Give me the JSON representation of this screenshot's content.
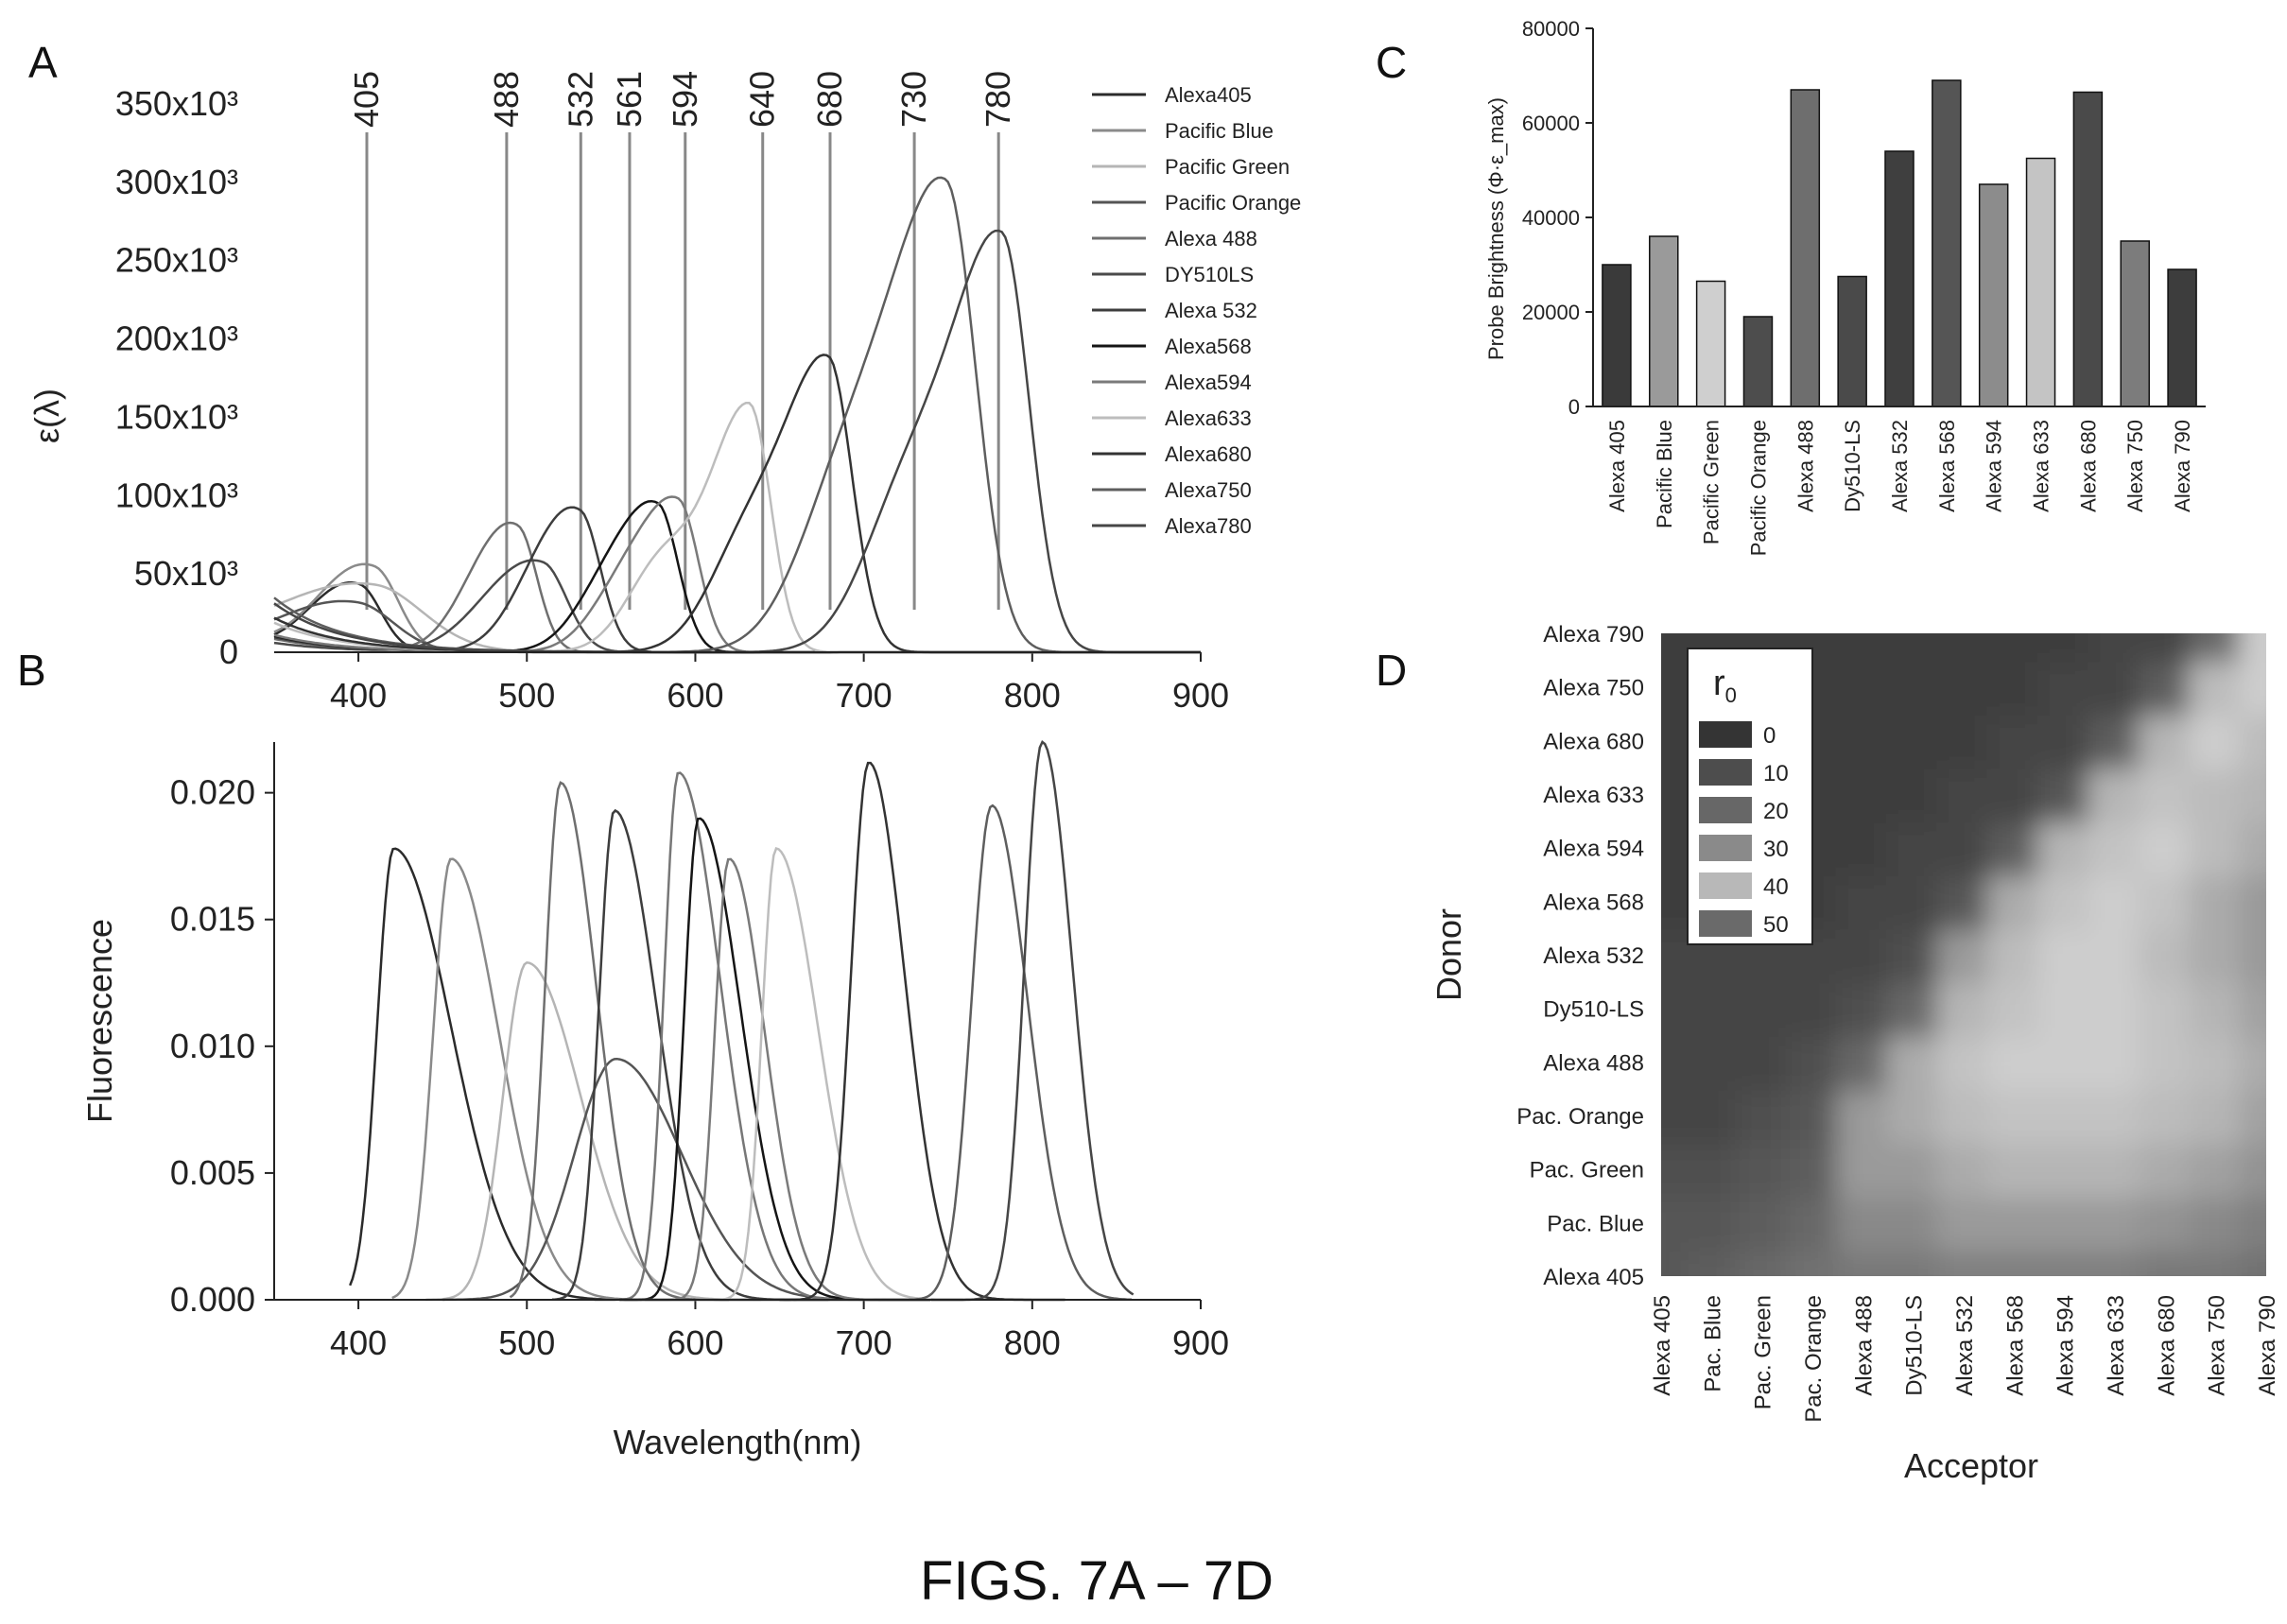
{
  "caption": "FIGS. 7A – 7D",
  "chart_data": [
    {
      "panel": "A",
      "type": "line",
      "ylabel": "ε(λ)",
      "xlim": [
        350,
        900
      ],
      "ylim": [
        0,
        350000
      ],
      "x_ticks": [
        "400",
        "500",
        "600",
        "700",
        "800",
        "900"
      ],
      "y_ticks": [
        "0",
        "50x10³",
        "100x10³",
        "150x10³",
        "200x10³",
        "250x10³",
        "300x10³",
        "350x10³"
      ],
      "laser_lines": [
        "405",
        "488",
        "532",
        "561",
        "594",
        "640",
        "680",
        "730",
        "780"
      ],
      "legend_placement": "right",
      "series": [
        {
          "name": "Alexa405",
          "peak_x": 401,
          "peak_y": 35000,
          "width": 18,
          "shoulder": 380,
          "color": "#2b2b2b"
        },
        {
          "name": "Pacific Blue",
          "peak_x": 410,
          "peak_y": 45000,
          "width": 20,
          "shoulder": 385,
          "color": "#8a8a8a"
        },
        {
          "name": "Pacific Green",
          "peak_x": 410,
          "peak_y": 33000,
          "width": 40,
          "shoulder": 380,
          "color": "#b5b5b5"
        },
        {
          "name": "Pacific Orange",
          "peak_x": 400,
          "peak_y": 25000,
          "width": 30,
          "shoulder": 370,
          "color": "#555555"
        },
        {
          "name": "Alexa 488",
          "peak_x": 495,
          "peak_y": 71000,
          "width": 16,
          "shoulder": 470,
          "color": "#6f6f6f"
        },
        {
          "name": "DY510LS",
          "peak_x": 510,
          "peak_y": 50000,
          "width": 20,
          "shoulder": 480,
          "color": "#4a4a4a"
        },
        {
          "name": "Alexa 532",
          "peak_x": 532,
          "peak_y": 80000,
          "width": 17,
          "shoulder": 505,
          "color": "#3d3d3d"
        },
        {
          "name": "Alexa568",
          "peak_x": 578,
          "peak_y": 88000,
          "width": 17,
          "shoulder": 545,
          "color": "#151515"
        },
        {
          "name": "Alexa594",
          "peak_x": 590,
          "peak_y": 92000,
          "width": 17,
          "shoulder": 555,
          "color": "#7a7a7a"
        },
        {
          "name": "Alexa633",
          "peak_x": 632,
          "peak_y": 157000,
          "width": 18,
          "shoulder": 580,
          "color": "#bdbdbd"
        },
        {
          "name": "Alexa680",
          "peak_x": 679,
          "peak_y": 183000,
          "width": 20,
          "shoulder": 630,
          "color": "#333333"
        },
        {
          "name": "Alexa750",
          "peak_x": 749,
          "peak_y": 290000,
          "width": 25,
          "shoulder": 690,
          "color": "#5e5e5e"
        },
        {
          "name": "Alexa780",
          "peak_x": 782,
          "peak_y": 260000,
          "width": 23,
          "shoulder": 725,
          "color": "#464646"
        }
      ]
    },
    {
      "panel": "B",
      "type": "line",
      "xlabel": "Wavelength(nm)",
      "ylabel": "Fluorescence",
      "xlim": [
        350,
        900
      ],
      "ylim": [
        0,
        0.022
      ],
      "x_ticks": [
        "400",
        "500",
        "600",
        "700",
        "800",
        "900"
      ],
      "y_ticks": [
        "0.000",
        "0.005",
        "0.010",
        "0.015",
        "0.020"
      ],
      "series": [
        {
          "peak_x": 421,
          "peak_y": 0.0178,
          "rise": 14,
          "decay": 48,
          "start": 395,
          "end": 620,
          "color": "#2b2b2b"
        },
        {
          "peak_x": 455,
          "peak_y": 0.0174,
          "rise": 15,
          "decay": 40,
          "start": 420,
          "end": 640,
          "color": "#8a8a8a"
        },
        {
          "peak_x": 500,
          "peak_y": 0.0133,
          "rise": 20,
          "decay": 45,
          "start": 440,
          "end": 680,
          "color": "#b5b5b5"
        },
        {
          "peak_x": 553,
          "peak_y": 0.0095,
          "rise": 35,
          "decay": 55,
          "start": 450,
          "end": 740,
          "color": "#555555"
        },
        {
          "peak_x": 520,
          "peak_y": 0.0204,
          "rise": 13,
          "decay": 30,
          "start": 490,
          "end": 680,
          "color": "#6f6f6f"
        },
        {
          "peak_x": 552,
          "peak_y": 0.0193,
          "rise": 13,
          "decay": 35,
          "start": 515,
          "end": 700,
          "color": "#3d3d3d"
        },
        {
          "peak_x": 590,
          "peak_y": 0.0208,
          "rise": 12,
          "decay": 35,
          "start": 540,
          "end": 740,
          "color": "#777777"
        },
        {
          "peak_x": 602,
          "peak_y": 0.019,
          "rise": 12,
          "decay": 35,
          "start": 555,
          "end": 740,
          "color": "#151515"
        },
        {
          "peak_x": 620,
          "peak_y": 0.0174,
          "rise": 12,
          "decay": 30,
          "start": 570,
          "end": 760,
          "color": "#7a7a7a"
        },
        {
          "peak_x": 648,
          "peak_y": 0.0178,
          "rise": 12,
          "decay": 35,
          "start": 600,
          "end": 800,
          "color": "#bdbdbd"
        },
        {
          "peak_x": 703,
          "peak_y": 0.0212,
          "rise": 15,
          "decay": 30,
          "start": 650,
          "end": 820,
          "color": "#333333"
        },
        {
          "peak_x": 776,
          "peak_y": 0.0195,
          "rise": 17,
          "decay": 30,
          "start": 700,
          "end": 860,
          "color": "#5e5e5e"
        },
        {
          "peak_x": 806,
          "peak_y": 0.022,
          "rise": 15,
          "decay": 25,
          "start": 740,
          "end": 860,
          "color": "#464646"
        }
      ]
    },
    {
      "panel": "C",
      "type": "bar",
      "ylabel": "Probe Brightness (Φ·ε_max)",
      "ylim": [
        0,
        80000
      ],
      "y_ticks": [
        "0",
        "20000",
        "40000",
        "60000",
        "80000"
      ],
      "categories": [
        "Alexa 405",
        "Pacific Blue",
        "Pacific Green",
        "Pacific Orange",
        "Alexa 488",
        "Dy510-LS",
        "Alexa 532",
        "Alexa 568",
        "Alexa 594",
        "Alexa 633",
        "Alexa 680",
        "Alexa 750",
        "Alexa 790"
      ],
      "values": [
        30000,
        36000,
        26500,
        19000,
        67000,
        27500,
        54000,
        69000,
        47000,
        52500,
        66500,
        35000,
        29000
      ],
      "colors": [
        "#3a3a3a",
        "#9a9a9a",
        "#cfcfcf",
        "#4d4d4d",
        "#6e6e6e",
        "#4a4a4a",
        "#3f3f3f",
        "#555555",
        "#8c8c8c",
        "#c4c4c4",
        "#4a4a4a",
        "#7c7c7c",
        "#3d3d3d"
      ]
    },
    {
      "panel": "D",
      "type": "heatmap",
      "xlabel": "Acceptor",
      "ylabel": "Donor",
      "legend_title": "r",
      "legend_subscript": "0",
      "legend_items": [
        {
          "label": "0",
          "color": "#343434"
        },
        {
          "label": "10",
          "color": "#4d4d4d"
        },
        {
          "label": "20",
          "color": "#676767"
        },
        {
          "label": "30",
          "color": "#8a8a8a"
        },
        {
          "label": "40",
          "color": "#b8b8b8"
        },
        {
          "label": "50",
          "color": "#6a6a6a"
        }
      ],
      "x_categories": [
        "Alexa 405",
        "Pac. Blue",
        "Pac. Green",
        "Pac. Orange",
        "Alexa 488",
        "Dy510-LS",
        "Alexa 532",
        "Alexa 568",
        "Alexa 594",
        "Alexa 633",
        "Alexa 680",
        "Alexa 750",
        "Alexa 790"
      ],
      "y_categories": [
        "Alexa 405",
        "Pac. Blue",
        "Pac. Green",
        "Pac. Orange",
        "Alexa 488",
        "Dy510-LS",
        "Alexa 532",
        "Alexa 568",
        "Alexa 594",
        "Alexa 633",
        "Alexa 680",
        "Alexa 750",
        "Alexa 790"
      ],
      "values": [
        [
          10,
          12,
          15,
          18,
          20,
          20,
          22,
          22,
          22,
          22,
          20,
          20,
          18
        ],
        [
          10,
          10,
          12,
          15,
          25,
          25,
          30,
          30,
          30,
          30,
          28,
          25,
          22
        ],
        [
          8,
          8,
          10,
          12,
          30,
          30,
          35,
          38,
          38,
          38,
          35,
          32,
          28
        ],
        [
          5,
          5,
          8,
          10,
          30,
          35,
          40,
          42,
          42,
          42,
          40,
          38,
          32
        ],
        [
          5,
          5,
          5,
          8,
          15,
          35,
          42,
          45,
          45,
          45,
          42,
          40,
          35
        ],
        [
          5,
          5,
          5,
          5,
          8,
          15,
          38,
          42,
          45,
          45,
          42,
          38,
          32
        ],
        [
          5,
          5,
          5,
          5,
          5,
          8,
          30,
          40,
          45,
          45,
          40,
          35,
          30
        ],
        [
          3,
          3,
          3,
          3,
          5,
          5,
          10,
          35,
          42,
          45,
          42,
          35,
          30
        ],
        [
          3,
          3,
          3,
          3,
          3,
          5,
          5,
          12,
          38,
          42,
          45,
          40,
          35
        ],
        [
          3,
          3,
          3,
          3,
          3,
          3,
          5,
          5,
          10,
          38,
          42,
          40,
          38
        ],
        [
          3,
          3,
          3,
          3,
          3,
          3,
          3,
          5,
          5,
          12,
          38,
          50,
          40
        ],
        [
          3,
          3,
          3,
          3,
          3,
          3,
          3,
          3,
          5,
          5,
          12,
          40,
          45
        ],
        [
          3,
          3,
          3,
          3,
          3,
          3,
          3,
          3,
          3,
          5,
          5,
          15,
          45
        ]
      ]
    }
  ]
}
